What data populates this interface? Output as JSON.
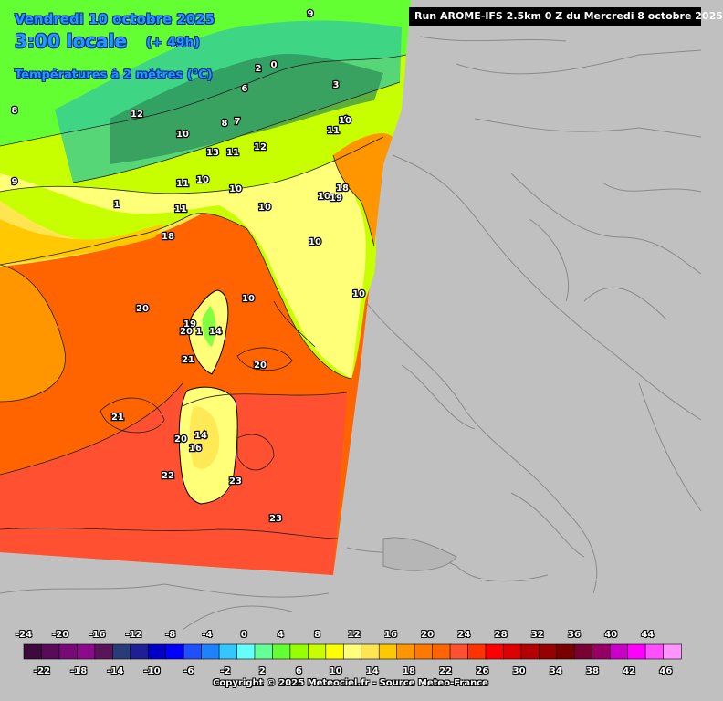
{
  "header": {
    "date_line": "Vendredi 10 octobre 2025",
    "time_line": "3:00 locale",
    "lead_line": "(+ 49h)",
    "variable_line": "Températures à 2 mètres (°C)",
    "run_info": "Run AROME-IFS 2.5km 0 Z du Mercredi 8 octobre 2025"
  },
  "map_labels": [
    {
      "text": "9",
      "region": "alps-north"
    },
    {
      "text": "0",
      "region": "alps"
    },
    {
      "text": "2",
      "region": "alps"
    },
    {
      "text": "6",
      "region": "alps"
    },
    {
      "text": "3",
      "region": "alps"
    },
    {
      "text": "4",
      "region": "alps"
    },
    {
      "text": "8",
      "region": "france-west"
    },
    {
      "text": "12",
      "region": "france"
    },
    {
      "text": "10",
      "region": "alps-south"
    },
    {
      "text": "13",
      "region": "alps-south"
    },
    {
      "text": "12",
      "region": "alps-south"
    },
    {
      "text": "11",
      "region": "alps-south"
    },
    {
      "text": "10",
      "region": "po-valley"
    },
    {
      "text": "11",
      "region": "po-valley"
    },
    {
      "text": "8",
      "region": "alps"
    },
    {
      "text": "7",
      "region": "alps"
    },
    {
      "text": "9",
      "region": "france-west"
    },
    {
      "text": "1",
      "region": "france"
    },
    {
      "text": "11",
      "region": "france"
    },
    {
      "text": "11",
      "region": "france"
    },
    {
      "text": "10",
      "region": "po-valley"
    },
    {
      "text": "10",
      "region": "po-valley"
    },
    {
      "text": "10",
      "region": "adriatic-coast"
    },
    {
      "text": "18",
      "region": "adriatic"
    },
    {
      "text": "10",
      "region": "adriatic"
    },
    {
      "text": "19",
      "region": "adriatic"
    },
    {
      "text": "10",
      "region": "liguria"
    },
    {
      "text": "18",
      "region": "provence"
    },
    {
      "text": "10",
      "region": "tuscany"
    },
    {
      "text": "10",
      "region": "italy"
    },
    {
      "text": "20",
      "region": "sea"
    },
    {
      "text": "19",
      "region": "corsica"
    },
    {
      "text": "20",
      "region": "corsica"
    },
    {
      "text": "1",
      "region": "corsica"
    },
    {
      "text": "14",
      "region": "corsica"
    },
    {
      "text": "21",
      "region": "corsica"
    },
    {
      "text": "20",
      "region": "tyrrhenian"
    },
    {
      "text": "21",
      "region": "sea"
    },
    {
      "text": "20",
      "region": "sardinia"
    },
    {
      "text": "14",
      "region": "sardinia"
    },
    {
      "text": "16",
      "region": "sardinia"
    },
    {
      "text": "22",
      "region": "sea"
    },
    {
      "text": "23",
      "region": "sardinia"
    },
    {
      "text": "23",
      "region": "sea-south"
    }
  ],
  "legend": {
    "top_labels": [
      "-24",
      "-20",
      "-16",
      "-12",
      "-8",
      "-4",
      "0",
      "4",
      "8",
      "12",
      "16",
      "20",
      "24",
      "28",
      "32",
      "36",
      "40",
      "44"
    ],
    "bottom_labels": [
      "-22",
      "-18",
      "-14",
      "-10",
      "-6",
      "-2",
      "2",
      "6",
      "10",
      "14",
      "18",
      "22",
      "26",
      "30",
      "34",
      "38",
      "42",
      "46"
    ],
    "colors": [
      "#3c0a3c",
      "#5a0a5a",
      "#780a78",
      "#8c0a8c",
      "#5a145a",
      "#283c78",
      "#1e1e96",
      "#0000c8",
      "#0000ff",
      "#1e50ff",
      "#1e82ff",
      "#32c8ff",
      "#64ffff",
      "#64ff96",
      "#64ff32",
      "#96ff00",
      "#c8ff00",
      "#ffff00",
      "#ffff78",
      "#ffe650",
      "#ffc800",
      "#ff9600",
      "#ff7800",
      "#ff6400",
      "#ff5032",
      "#ff3200",
      "#ff0000",
      "#dc0000",
      "#b40000",
      "#960000",
      "#780000",
      "#780032",
      "#960064",
      "#c800c8",
      "#ff00ff",
      "#ff50ff",
      "#ff96ff"
    ]
  },
  "footer": {
    "copyright": "Copyright © 2025 Meteociel.fr - Source Meteo-France"
  }
}
